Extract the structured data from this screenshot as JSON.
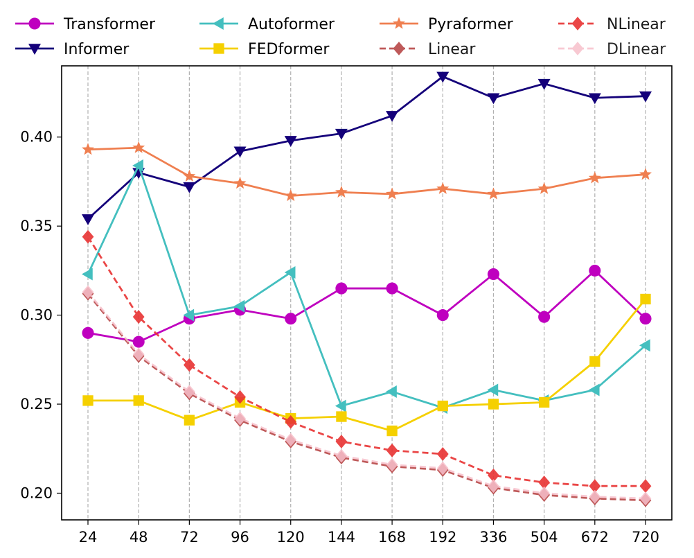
{
  "chart_data": {
    "type": "line",
    "title": "",
    "xlabel": "",
    "ylabel": "",
    "x": [
      "24",
      "48",
      "72",
      "96",
      "120",
      "144",
      "168",
      "192",
      "336",
      "504",
      "672",
      "720"
    ],
    "ylim": [
      0.185,
      0.44
    ],
    "yticks": [
      0.2,
      0.25,
      0.3,
      0.35,
      0.4
    ],
    "ytick_labels": [
      "0.20",
      "0.25",
      "0.30",
      "0.35",
      "0.40"
    ],
    "grid": "vertical-dashed",
    "legend_position": "top",
    "series": [
      {
        "name": "Transformer",
        "color": "#bf00bf",
        "marker": "circle",
        "dash": false,
        "opacity": 1,
        "values": [
          0.29,
          0.285,
          0.298,
          0.303,
          0.298,
          0.315,
          0.315,
          0.3,
          0.323,
          0.299,
          0.325,
          0.298
        ]
      },
      {
        "name": "Informer",
        "color": "#14007a",
        "marker": "triangle-down",
        "dash": false,
        "opacity": 1,
        "values": [
          0.354,
          0.38,
          0.372,
          0.392,
          0.398,
          0.402,
          0.412,
          0.434,
          0.422,
          0.43,
          0.422,
          0.423
        ]
      },
      {
        "name": "Autoformer",
        "color": "#44bfbf",
        "marker": "triangle-left",
        "dash": false,
        "opacity": 1,
        "values": [
          0.323,
          0.384,
          0.3,
          0.305,
          0.324,
          0.249,
          0.257,
          0.248,
          0.258,
          0.252,
          0.258,
          0.283
        ]
      },
      {
        "name": "FEDformer",
        "color": "#f5d000",
        "marker": "square",
        "dash": false,
        "opacity": 1,
        "values": [
          0.252,
          0.252,
          0.241,
          0.251,
          0.242,
          0.243,
          0.235,
          0.249,
          0.25,
          0.251,
          0.274,
          0.309
        ]
      },
      {
        "name": "Pyraformer",
        "color": "#ef7f50",
        "marker": "star",
        "dash": false,
        "opacity": 1,
        "values": [
          0.393,
          0.394,
          0.378,
          0.374,
          0.367,
          0.369,
          0.368,
          0.371,
          0.368,
          0.371,
          0.377,
          0.379
        ]
      },
      {
        "name": "Linear",
        "color": "#b84848",
        "marker": "diamond",
        "dash": true,
        "opacity": 0.9,
        "values": [
          0.312,
          0.277,
          0.256,
          0.241,
          0.229,
          0.22,
          0.215,
          0.213,
          0.203,
          0.199,
          0.197,
          0.196
        ]
      },
      {
        "name": "NLinear",
        "color": "#e83333",
        "marker": "diamond",
        "dash": true,
        "opacity": 0.9,
        "values": [
          0.344,
          0.299,
          0.272,
          0.254,
          0.24,
          0.229,
          0.224,
          0.222,
          0.21,
          0.206,
          0.204,
          0.204
        ]
      },
      {
        "name": "DLinear",
        "color": "#f7c0cb",
        "marker": "diamond",
        "dash": true,
        "opacity": 0.85,
        "values": [
          0.313,
          0.278,
          0.257,
          0.242,
          0.23,
          0.221,
          0.216,
          0.214,
          0.204,
          0.2,
          0.198,
          0.197
        ]
      }
    ]
  }
}
